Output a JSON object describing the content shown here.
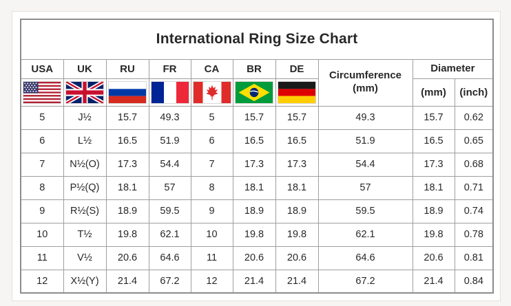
{
  "table": {
    "title": "International Ring Size Chart",
    "country_columns": [
      {
        "label": "USA",
        "flag": "usa-flag-icon"
      },
      {
        "label": "UK",
        "flag": "uk-flag-icon"
      },
      {
        "label": "RU",
        "flag": "russia-flag-icon"
      },
      {
        "label": "FR",
        "flag": "france-flag-icon"
      },
      {
        "label": "CA",
        "flag": "canada-flag-icon"
      },
      {
        "label": "BR",
        "flag": "brazil-flag-icon"
      },
      {
        "label": "DE",
        "flag": "germany-flag-icon"
      }
    ],
    "circumference": {
      "label": "Circumference",
      "unit": "(mm)"
    },
    "diameter": {
      "label": "Diameter",
      "units": [
        "(mm)",
        "(inch)"
      ]
    },
    "rows": [
      [
        "5",
        "J½",
        "15.7",
        "49.3",
        "5",
        "15.7",
        "15.7",
        "49.3",
        "15.7",
        "0.62"
      ],
      [
        "6",
        "L½",
        "16.5",
        "51.9",
        "6",
        "16.5",
        "16.5",
        "51.9",
        "16.5",
        "0.65"
      ],
      [
        "7",
        "N½(O)",
        "17.3",
        "54.4",
        "7",
        "17.3",
        "17.3",
        "54.4",
        "17.3",
        "0.68"
      ],
      [
        "8",
        "P½(Q)",
        "18.1",
        "57",
        "8",
        "18.1",
        "18.1",
        "57",
        "18.1",
        "0.71"
      ],
      [
        "9",
        "R½(S)",
        "18.9",
        "59.5",
        "9",
        "18.9",
        "18.9",
        "59.5",
        "18.9",
        "0.74"
      ],
      [
        "10",
        "T½",
        "19.8",
        "62.1",
        "10",
        "19.8",
        "19.8",
        "62.1",
        "19.8",
        "0.78"
      ],
      [
        "11",
        "V½",
        "20.6",
        "64.6",
        "11",
        "20.6",
        "20.6",
        "64.6",
        "20.6",
        "0.81"
      ],
      [
        "12",
        "X½(Y)",
        "21.4",
        "67.2",
        "12",
        "21.4",
        "21.4",
        "67.2",
        "21.4",
        "0.84"
      ]
    ],
    "flag_colors": {
      "usa_canton": "#3C3B6E",
      "usa_stripe": "#B22234",
      "uk_blue": "#012169",
      "uk_red": "#C8102E",
      "ru_blue": "#0039A6",
      "ru_red": "#D52B1E",
      "fr_blue": "#002395",
      "fr_red": "#ED2939",
      "ca_red": "#E02B2B",
      "br_green": "#009B3A",
      "br_yellow": "#FEDF00",
      "br_blue": "#002776",
      "de_black": "#1a1a1a",
      "de_red": "#DD0000",
      "de_gold": "#FFCE00"
    }
  },
  "chart_data": {
    "type": "table",
    "title": "International Ring Size Chart",
    "columns": [
      "USA",
      "UK",
      "RU",
      "FR",
      "CA",
      "BR",
      "DE",
      "Circumference (mm)",
      "Diameter (mm)",
      "Diameter (inch)"
    ],
    "rows": [
      [
        "5",
        "J½",
        "15.7",
        "49.3",
        "5",
        "15.7",
        "15.7",
        "49.3",
        "15.7",
        "0.62"
      ],
      [
        "6",
        "L½",
        "16.5",
        "51.9",
        "6",
        "16.5",
        "16.5",
        "51.9",
        "16.5",
        "0.65"
      ],
      [
        "7",
        "N½(O)",
        "17.3",
        "54.4",
        "7",
        "17.3",
        "17.3",
        "54.4",
        "17.3",
        "0.68"
      ],
      [
        "8",
        "P½(Q)",
        "18.1",
        "57",
        "8",
        "18.1",
        "18.1",
        "57",
        "18.1",
        "0.71"
      ],
      [
        "9",
        "R½(S)",
        "18.9",
        "59.5",
        "9",
        "18.9",
        "18.9",
        "59.5",
        "18.9",
        "0.74"
      ],
      [
        "10",
        "T½",
        "19.8",
        "62.1",
        "10",
        "19.8",
        "19.8",
        "62.1",
        "19.8",
        "0.78"
      ],
      [
        "11",
        "V½",
        "20.6",
        "64.6",
        "11",
        "20.6",
        "20.6",
        "64.6",
        "20.6",
        "0.81"
      ],
      [
        "12",
        "X½(Y)",
        "21.4",
        "67.2",
        "12",
        "21.4",
        "21.4",
        "67.2",
        "21.4",
        "0.84"
      ]
    ]
  }
}
